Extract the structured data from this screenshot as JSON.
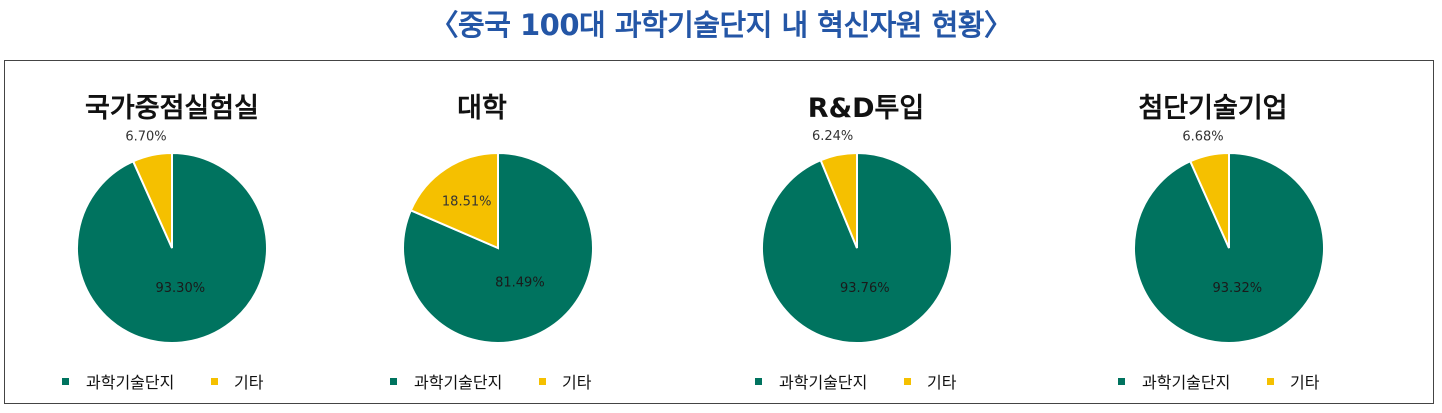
{
  "page_title": "〈중국 100대 과학기술단지 내 혁신자원 현황〉",
  "colors": {
    "primary": "#00735f",
    "secondary": "#f5c000",
    "title": "#2456a6"
  },
  "legend_labels": [
    "과학기술단지",
    "기타"
  ],
  "chart_data": [
    {
      "type": "pie",
      "title": "국가중점실험실",
      "categories": [
        "과학기술단지",
        "기타"
      ],
      "values": [
        93.3,
        6.7
      ],
      "labels": [
        "93.30%",
        "6.70%"
      ],
      "legend": "bottom"
    },
    {
      "type": "pie",
      "title": "대학",
      "categories": [
        "과학기술단지",
        "기타"
      ],
      "values": [
        81.49,
        18.51
      ],
      "labels": [
        "81.49%",
        "18.51%"
      ],
      "legend": "bottom"
    },
    {
      "type": "pie",
      "title": "R&D투입",
      "categories": [
        "과학기술단지",
        "기타"
      ],
      "values": [
        93.76,
        6.24
      ],
      "labels": [
        "93.76%",
        "6.24%"
      ],
      "legend": "bottom"
    },
    {
      "type": "pie",
      "title": "첨단기술기업",
      "categories": [
        "과학기술단지",
        "기타"
      ],
      "values": [
        93.32,
        6.68
      ],
      "labels": [
        "93.32%",
        "6.68%"
      ],
      "legend": "bottom"
    }
  ]
}
